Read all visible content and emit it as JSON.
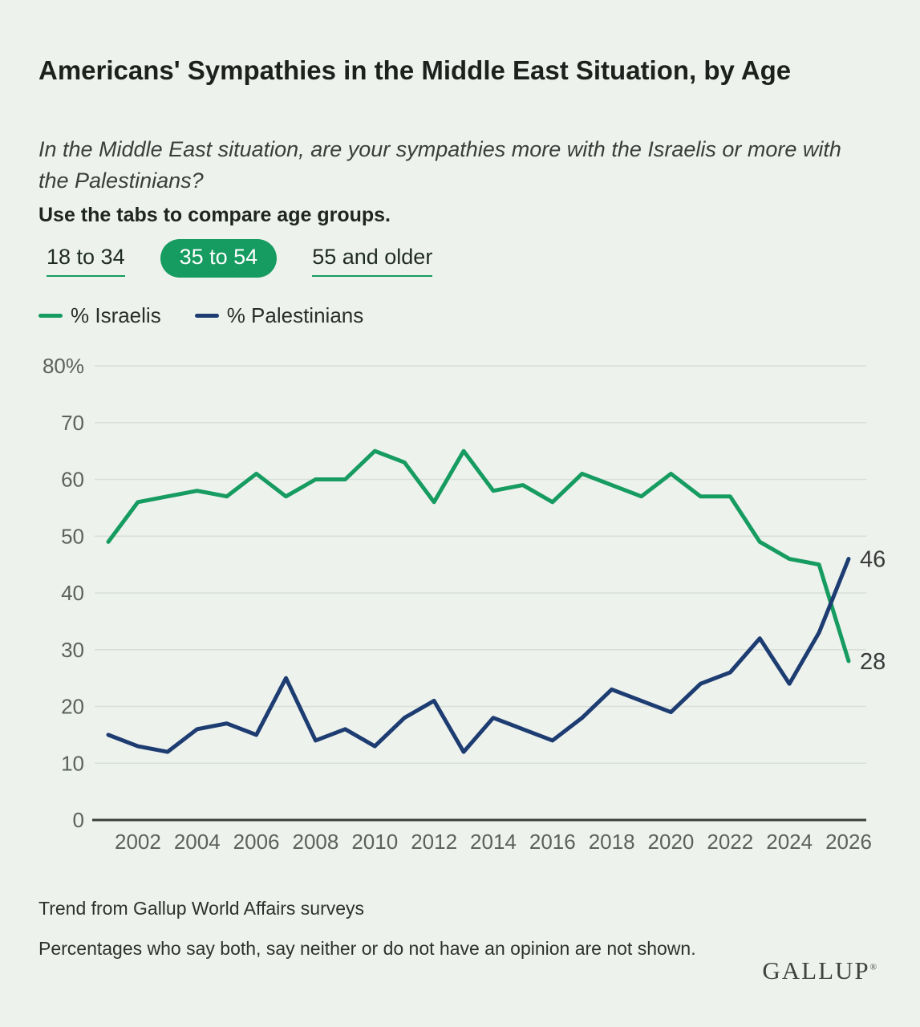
{
  "header": {
    "title": "Americans' Sympathies in the Middle East Situation, by Age",
    "subtitle": "In the Middle East situation, are your sympathies more with the Israelis or more with the Palestinians?"
  },
  "tabs": {
    "instruction": "Use the tabs to compare age groups.",
    "accent_color": "#169b60",
    "items": [
      {
        "label": "18 to 34",
        "active": false
      },
      {
        "label": "35 to 54",
        "active": true
      },
      {
        "label": "55 and older",
        "active": false
      }
    ]
  },
  "legend": {
    "items": [
      {
        "label": "% Israelis",
        "color": "#169b60"
      },
      {
        "label": "% Palestinians",
        "color": "#1d3c71"
      }
    ]
  },
  "chart_data": {
    "type": "line",
    "title": "Americans' Sympathies in the Middle East Situation, by Age (35 to 54)",
    "x": [
      2001,
      2002,
      2003,
      2004,
      2005,
      2006,
      2007,
      2008,
      2009,
      2010,
      2011,
      2012,
      2013,
      2014,
      2015,
      2016,
      2017,
      2018,
      2019,
      2020,
      2021,
      2022,
      2023,
      2024,
      2025,
      2026
    ],
    "series": [
      {
        "name": "% Israelis",
        "color": "#169b60",
        "values": [
          49,
          56,
          57,
          58,
          57,
          61,
          57,
          60,
          60,
          65,
          63,
          56,
          65,
          58,
          59,
          56,
          61,
          59,
          57,
          61,
          57,
          57,
          49,
          46,
          45,
          28
        ],
        "end_label": "28"
      },
      {
        "name": "% Palestinians",
        "color": "#1d3c71",
        "values": [
          15,
          13,
          12,
          16,
          17,
          15,
          25,
          14,
          16,
          13,
          18,
          21,
          12,
          18,
          16,
          14,
          18,
          23,
          21,
          19,
          24,
          26,
          32,
          24,
          33,
          46
        ],
        "end_label": "46"
      }
    ],
    "ylim": [
      0,
      80
    ],
    "yticks": {
      "values": [
        80,
        70,
        60,
        50,
        40,
        30,
        20,
        10,
        0
      ],
      "labels": [
        "80%",
        "70",
        "60",
        "50",
        "40",
        "30",
        "20",
        "10",
        "0"
      ]
    },
    "xticks": [
      2002,
      2004,
      2006,
      2008,
      2010,
      2012,
      2014,
      2016,
      2018,
      2020,
      2022,
      2024,
      2026
    ],
    "grid": true,
    "legend_position": "top-left",
    "colors": {
      "grid": "#d8ded8",
      "axis": "#3b403c",
      "tick_text": "#5c615c",
      "end_label_text": "#3a3a3a"
    }
  },
  "footnotes": [
    "Trend from Gallup World Affairs surveys",
    "Percentages who say both, say neither or do not have an opinion are not shown."
  ],
  "brand": "GALLUP"
}
